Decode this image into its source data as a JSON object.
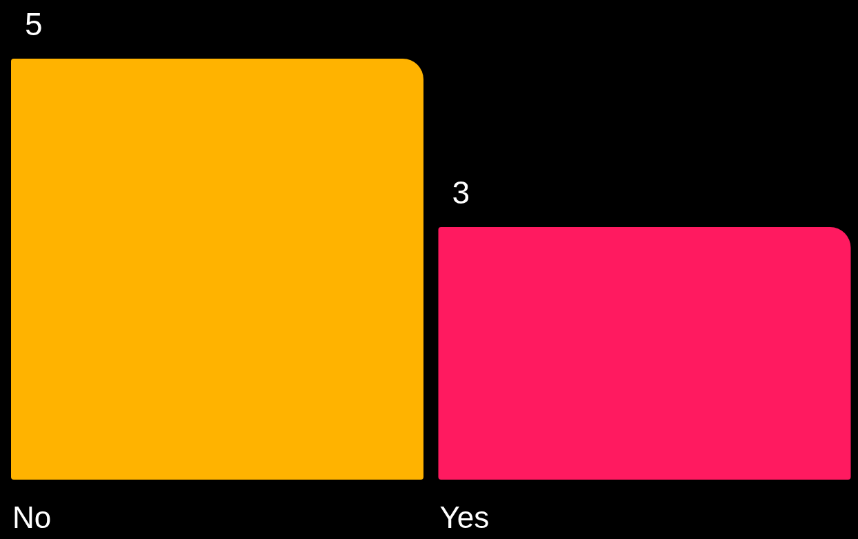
{
  "chart_data": {
    "type": "bar",
    "categories": [
      "No",
      "Yes"
    ],
    "values": [
      5,
      3
    ],
    "colors": [
      "#ffb300",
      "#ff1a60"
    ],
    "data_labels": true
  }
}
